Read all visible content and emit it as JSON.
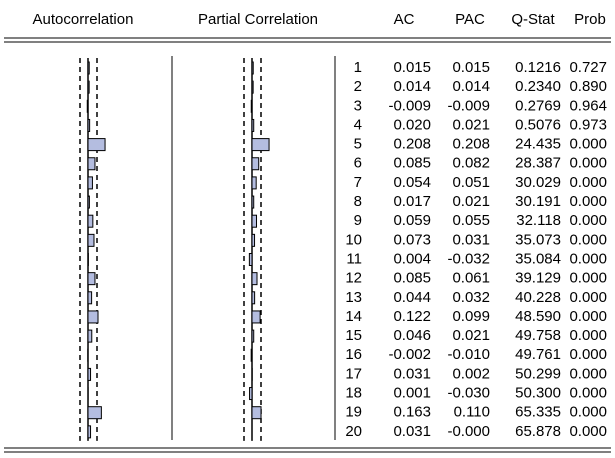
{
  "header": {
    "columns": [
      "Autocorrelation",
      "Partial Correlation",
      "AC",
      "PAC",
      "Q-Stat",
      "Prob"
    ]
  },
  "table": {
    "rows": [
      [
        "1",
        "0.015",
        "0.015",
        "0.1216",
        "0.727"
      ],
      [
        "2",
        "0.014",
        "0.014",
        "0.2340",
        "0.890"
      ],
      [
        "3",
        "-0.009",
        "-0.009",
        "0.2769",
        "0.964"
      ],
      [
        "4",
        "0.020",
        "0.021",
        "0.5076",
        "0.973"
      ],
      [
        "5",
        "0.208",
        "0.208",
        "24.435",
        "0.000"
      ],
      [
        "6",
        "0.085",
        "0.082",
        "28.387",
        "0.000"
      ],
      [
        "7",
        "0.054",
        "0.051",
        "30.029",
        "0.000"
      ],
      [
        "8",
        "0.017",
        "0.021",
        "30.191",
        "0.000"
      ],
      [
        "9",
        "0.059",
        "0.055",
        "32.118",
        "0.000"
      ],
      [
        "10",
        "0.073",
        "0.031",
        "35.073",
        "0.000"
      ],
      [
        "11",
        "0.004",
        "-0.032",
        "35.084",
        "0.000"
      ],
      [
        "12",
        "0.085",
        "0.061",
        "39.129",
        "0.000"
      ],
      [
        "13",
        "0.044",
        "0.032",
        "40.228",
        "0.000"
      ],
      [
        "14",
        "0.122",
        "0.099",
        "48.590",
        "0.000"
      ],
      [
        "15",
        "0.046",
        "0.021",
        "49.758",
        "0.000"
      ],
      [
        "16",
        "-0.002",
        "-0.010",
        "49.761",
        "0.000"
      ],
      [
        "17",
        "0.031",
        "0.002",
        "50.299",
        "0.000"
      ],
      [
        "18",
        "0.001",
        "-0.030",
        "50.300",
        "0.000"
      ],
      [
        "19",
        "0.163",
        "0.110",
        "65.335",
        "0.000"
      ],
      [
        "20",
        "0.031",
        "-0.000",
        "65.878",
        "0.000"
      ]
    ]
  }
}
